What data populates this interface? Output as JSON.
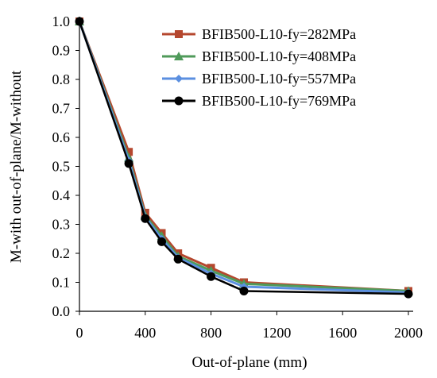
{
  "chart_data": {
    "type": "line",
    "title": "",
    "xlabel": "Out-of-plane (mm)",
    "ylabel": "M-with out-of-plane/M-without",
    "xlim": [
      0,
      2000
    ],
    "ylim": [
      0.0,
      1.0
    ],
    "x_ticks": [
      "0",
      "400",
      "800",
      "1200",
      "1600",
      "2000"
    ],
    "y_ticks": [
      "0.0",
      "0.1",
      "0.2",
      "0.3",
      "0.4",
      "0.5",
      "0.6",
      "0.7",
      "0.8",
      "0.9",
      "1.0"
    ],
    "grid": false,
    "legend_position": "top-right",
    "x": [
      0,
      300,
      400,
      500,
      600,
      800,
      1000,
      2000
    ],
    "series": [
      {
        "name": "BFIB500-L10-fy=282MPa",
        "color": "#b5472e",
        "marker": "square",
        "values": [
          1.0,
          0.55,
          0.34,
          0.27,
          0.2,
          0.15,
          0.1,
          0.07
        ]
      },
      {
        "name": "BFIB500-L10-fy=408MPa",
        "color": "#4f9a5a",
        "marker": "triangle",
        "values": [
          1.0,
          0.53,
          0.33,
          0.26,
          0.19,
          0.14,
          0.095,
          0.07
        ]
      },
      {
        "name": "BFIB500-L10-fy=557MPa",
        "color": "#5b8fe0",
        "marker": "diamond",
        "values": [
          1.0,
          0.52,
          0.325,
          0.25,
          0.185,
          0.13,
          0.085,
          0.065
        ]
      },
      {
        "name": "BFIB500-L10-fy=769MPa",
        "color": "#000000",
        "marker": "circle",
        "values": [
          1.0,
          0.51,
          0.32,
          0.24,
          0.18,
          0.12,
          0.07,
          0.06
        ]
      }
    ]
  }
}
